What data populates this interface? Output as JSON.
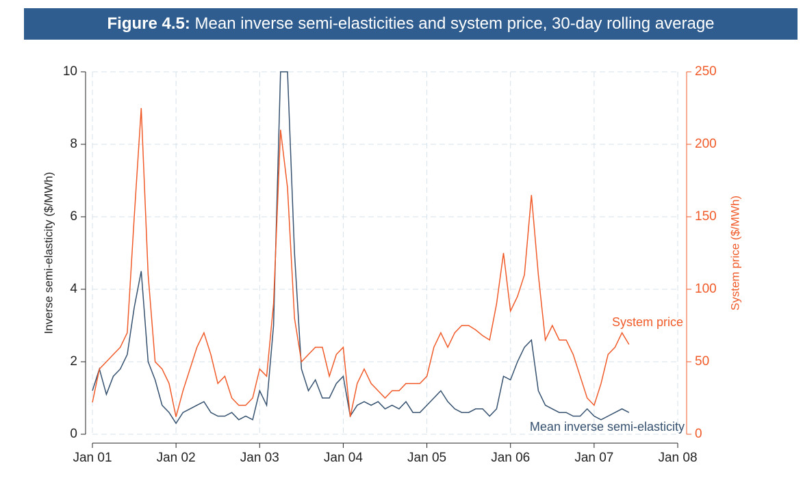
{
  "chart_data": {
    "type": "line",
    "title_label": "Figure 4.5:",
    "title": "Mean inverse semi-elasticities and system price, 30-day rolling average",
    "ylabel": "Inverse semi-elasticity ($/MWh)",
    "y2label": "System price ($/MWh)",
    "x": [
      "2001-01",
      "2001-02",
      "2001-03",
      "2001-04",
      "2001-05",
      "2001-06",
      "2001-07",
      "2001-08",
      "2001-09",
      "2001-10",
      "2001-11",
      "2001-12",
      "2002-01",
      "2002-02",
      "2002-03",
      "2002-04",
      "2002-05",
      "2002-06",
      "2002-07",
      "2002-08",
      "2002-09",
      "2002-10",
      "2002-11",
      "2002-12",
      "2003-01",
      "2003-02",
      "2003-03",
      "2003-04",
      "2003-05",
      "2003-06",
      "2003-07",
      "2003-08",
      "2003-09",
      "2003-10",
      "2003-11",
      "2003-12",
      "2004-01",
      "2004-02",
      "2004-03",
      "2004-04",
      "2004-05",
      "2004-06",
      "2004-07",
      "2004-08",
      "2004-09",
      "2004-10",
      "2004-11",
      "2004-12",
      "2005-01",
      "2005-02",
      "2005-03",
      "2005-04",
      "2005-05",
      "2005-06",
      "2005-07",
      "2005-08",
      "2005-09",
      "2005-10",
      "2005-11",
      "2005-12",
      "2006-01",
      "2006-02",
      "2006-03",
      "2006-04",
      "2006-05",
      "2006-06",
      "2006-07",
      "2006-08",
      "2006-09",
      "2006-10",
      "2006-11",
      "2006-12",
      "2007-01",
      "2007-02",
      "2007-03",
      "2007-04",
      "2007-05",
      "2007-06"
    ],
    "series": [
      {
        "name": "Mean inverse semi-elasticity",
        "color": "#34506e",
        "axis": "y",
        "values": [
          1.2,
          1.8,
          1.1,
          1.6,
          1.8,
          2.2,
          3.5,
          4.5,
          2.0,
          1.5,
          0.8,
          0.6,
          0.3,
          0.6,
          0.7,
          0.8,
          0.9,
          0.6,
          0.5,
          0.5,
          0.6,
          0.4,
          0.5,
          0.4,
          1.2,
          0.8,
          3.0,
          10,
          10,
          5.0,
          1.8,
          1.2,
          1.5,
          1.0,
          1.0,
          1.4,
          1.6,
          0.5,
          0.8,
          0.9,
          0.8,
          0.9,
          0.7,
          0.8,
          0.7,
          0.9,
          0.6,
          0.6,
          0.8,
          1.0,
          1.2,
          0.9,
          0.7,
          0.6,
          0.6,
          0.7,
          0.7,
          0.5,
          0.7,
          1.6,
          1.5,
          2.0,
          2.4,
          2.6,
          1.2,
          0.8,
          0.7,
          0.6,
          0.6,
          0.5,
          0.5,
          0.7,
          0.5,
          0.4,
          0.5,
          0.6,
          0.7,
          0.6
        ]
      },
      {
        "name": "System price",
        "color": "#f05a28",
        "axis": "y2",
        "values": [
          22,
          45,
          50,
          55,
          60,
          70,
          150,
          225,
          110,
          50,
          45,
          35,
          12,
          30,
          45,
          60,
          70,
          55,
          35,
          40,
          25,
          20,
          20,
          25,
          45,
          40,
          90,
          210,
          170,
          80,
          50,
          55,
          60,
          60,
          40,
          55,
          60,
          12,
          35,
          45,
          35,
          30,
          25,
          30,
          30,
          35,
          35,
          35,
          40,
          60,
          70,
          60,
          70,
          75,
          75,
          72,
          68,
          65,
          90,
          125,
          85,
          95,
          110,
          165,
          110,
          65,
          75,
          65,
          65,
          55,
          40,
          25,
          20,
          35,
          55,
          60,
          70,
          62
        ]
      }
    ],
    "xlim": [
      "2001-01",
      "2008-01"
    ],
    "xticks": [
      {
        "value": "2001-01",
        "label": "Jan 01"
      },
      {
        "value": "2002-01",
        "label": "Jan 02"
      },
      {
        "value": "2003-01",
        "label": "Jan 03"
      },
      {
        "value": "2004-01",
        "label": "Jan 04"
      },
      {
        "value": "2005-01",
        "label": "Jan 05"
      },
      {
        "value": "2006-01",
        "label": "Jan 06"
      },
      {
        "value": "2007-01",
        "label": "Jan 07"
      },
      {
        "value": "2008-01",
        "label": "Jan 08"
      }
    ],
    "ylim": [
      0,
      10
    ],
    "yticks": [
      0,
      2,
      4,
      6,
      8,
      10
    ],
    "y2lim": [
      0,
      250
    ],
    "y2ticks": [
      0,
      50,
      100,
      150,
      200,
      250
    ],
    "grid": true
  }
}
